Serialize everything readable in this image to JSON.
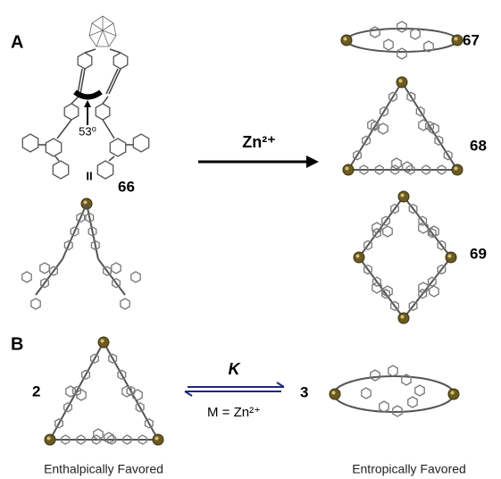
{
  "panel_a": {
    "label": "A",
    "angle": "53⁰",
    "equals": "II",
    "ligand": "66",
    "reagent": "Zn²⁺",
    "products": [
      "67",
      "68",
      "69"
    ]
  },
  "panel_b": {
    "label": "B",
    "left": "2",
    "right": "3",
    "constant": "K",
    "metal": "M = Zn²⁺",
    "left_caption": "Enthalpically Favored",
    "right_caption": "Entropically Favored"
  }
}
